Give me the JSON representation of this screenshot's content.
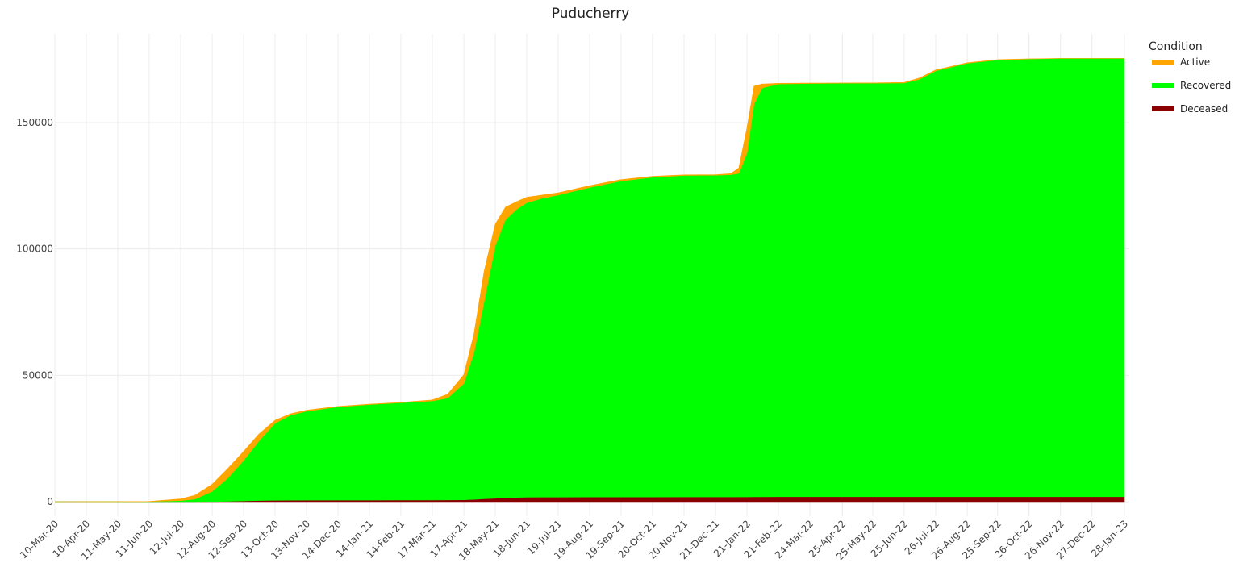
{
  "chart_data": {
    "type": "area",
    "title": "Puducherry",
    "xlabel": "",
    "ylabel": "",
    "stacked": true,
    "ylim": [
      -7000,
      178000
    ],
    "yticks": [
      0,
      50000,
      100000,
      150000
    ],
    "ytick_labels": [
      "0",
      "50000",
      "100000",
      "150000"
    ],
    "xtick_labels": [
      "10-Mar-20",
      "10-Apr-20",
      "11-May-20",
      "11-Jun-20",
      "12-Jul-20",
      "12-Aug-20",
      "12-Sep-20",
      "13-Oct-20",
      "13-Nov-20",
      "14-Dec-20",
      "14-Jan-21",
      "14-Feb-21",
      "17-Mar-21",
      "17-Apr-21",
      "18-May-21",
      "18-Jun-21",
      "19-Jul-21",
      "19-Aug-21",
      "19-Sep-21",
      "20-Oct-21",
      "20-Nov-21",
      "21-Dec-21",
      "21-Jan-22",
      "21-Feb-22",
      "24-Mar-22",
      "25-Apr-22",
      "25-May-22",
      "25-Jun-22",
      "26-Jul-22",
      "26-Aug-22",
      "25-Sep-22",
      "26-Oct-22",
      "26-Nov-22",
      "27-Dec-22",
      "28-Jan-23"
    ],
    "grid": true,
    "legend": {
      "title": "Condition",
      "position": "right"
    },
    "x": [
      "10-Mar-20",
      "10-Apr-20",
      "11-May-20",
      "11-Jun-20",
      "12-Jul-20",
      "26-Jul-20",
      "12-Aug-20",
      "27-Aug-20",
      "12-Sep-20",
      "27-Sep-20",
      "13-Oct-20",
      "28-Oct-20",
      "13-Nov-20",
      "14-Dec-20",
      "14-Jan-21",
      "14-Feb-21",
      "17-Mar-21",
      "01-Apr-21",
      "17-Apr-21",
      "27-Apr-21",
      "07-May-21",
      "18-May-21",
      "28-May-21",
      "08-Jun-21",
      "18-Jun-21",
      "03-Jul-21",
      "19-Jul-21",
      "19-Aug-21",
      "19-Sep-21",
      "20-Oct-21",
      "20-Nov-21",
      "21-Dec-21",
      "05-Jan-22",
      "13-Jan-22",
      "21-Jan-22",
      "28-Jan-22",
      "05-Feb-22",
      "21-Feb-22",
      "24-Mar-22",
      "25-Apr-22",
      "25-May-22",
      "25-Jun-22",
      "10-Jul-22",
      "26-Jul-22",
      "26-Aug-22",
      "25-Sep-22",
      "26-Oct-22",
      "26-Nov-22",
      "27-Dec-22",
      "28-Jan-23"
    ],
    "series": [
      {
        "name": "Deceased",
        "color": "#8b0000",
        "values": [
          0,
          0,
          0,
          0,
          5,
          30,
          60,
          150,
          300,
          450,
          550,
          590,
          610,
          620,
          630,
          640,
          670,
          700,
          750,
          900,
          1150,
          1350,
          1550,
          1700,
          1780,
          1800,
          1820,
          1840,
          1860,
          1870,
          1880,
          1885,
          1890,
          1900,
          1910,
          1930,
          1950,
          1960,
          1962,
          1962,
          1962,
          1962,
          1963,
          1965,
          1970,
          1972,
          1974,
          1975,
          1975,
          1976
        ]
      },
      {
        "name": "Recovered",
        "color": "#00ff00",
        "values": [
          0,
          3,
          5,
          40,
          400,
          1000,
          4000,
          9000,
          16000,
          23500,
          30500,
          33600,
          35200,
          36900,
          37800,
          38500,
          39200,
          40300,
          46000,
          58000,
          78000,
          100000,
          110000,
          114000,
          116500,
          118200,
          119500,
          122500,
          125000,
          126500,
          127200,
          127300,
          127500,
          128000,
          136000,
          155500,
          161800,
          163300,
          163500,
          163600,
          163600,
          163700,
          165200,
          168500,
          171500,
          172800,
          173200,
          173400,
          173400,
          173400
        ]
      },
      {
        "name": "Active",
        "color": "#ffa500",
        "values": [
          0,
          2,
          3,
          50,
          700,
          1500,
          2800,
          3800,
          3600,
          2800,
          1200,
          600,
          400,
          200,
          180,
          150,
          400,
          1500,
          3500,
          7500,
          12000,
          8500,
          5000,
          3000,
          2200,
          1300,
          900,
          700,
          600,
          400,
          250,
          200,
          400,
          2200,
          10000,
          7000,
          1500,
          300,
          150,
          100,
          150,
          250,
          500,
          400,
          200,
          150,
          60,
          30,
          20,
          15
        ]
      }
    ]
  },
  "legend_items": [
    {
      "label": "Active",
      "color": "#ffa500"
    },
    {
      "label": "Recovered",
      "color": "#00ff00"
    },
    {
      "label": "Deceased",
      "color": "#8b0000"
    }
  ]
}
